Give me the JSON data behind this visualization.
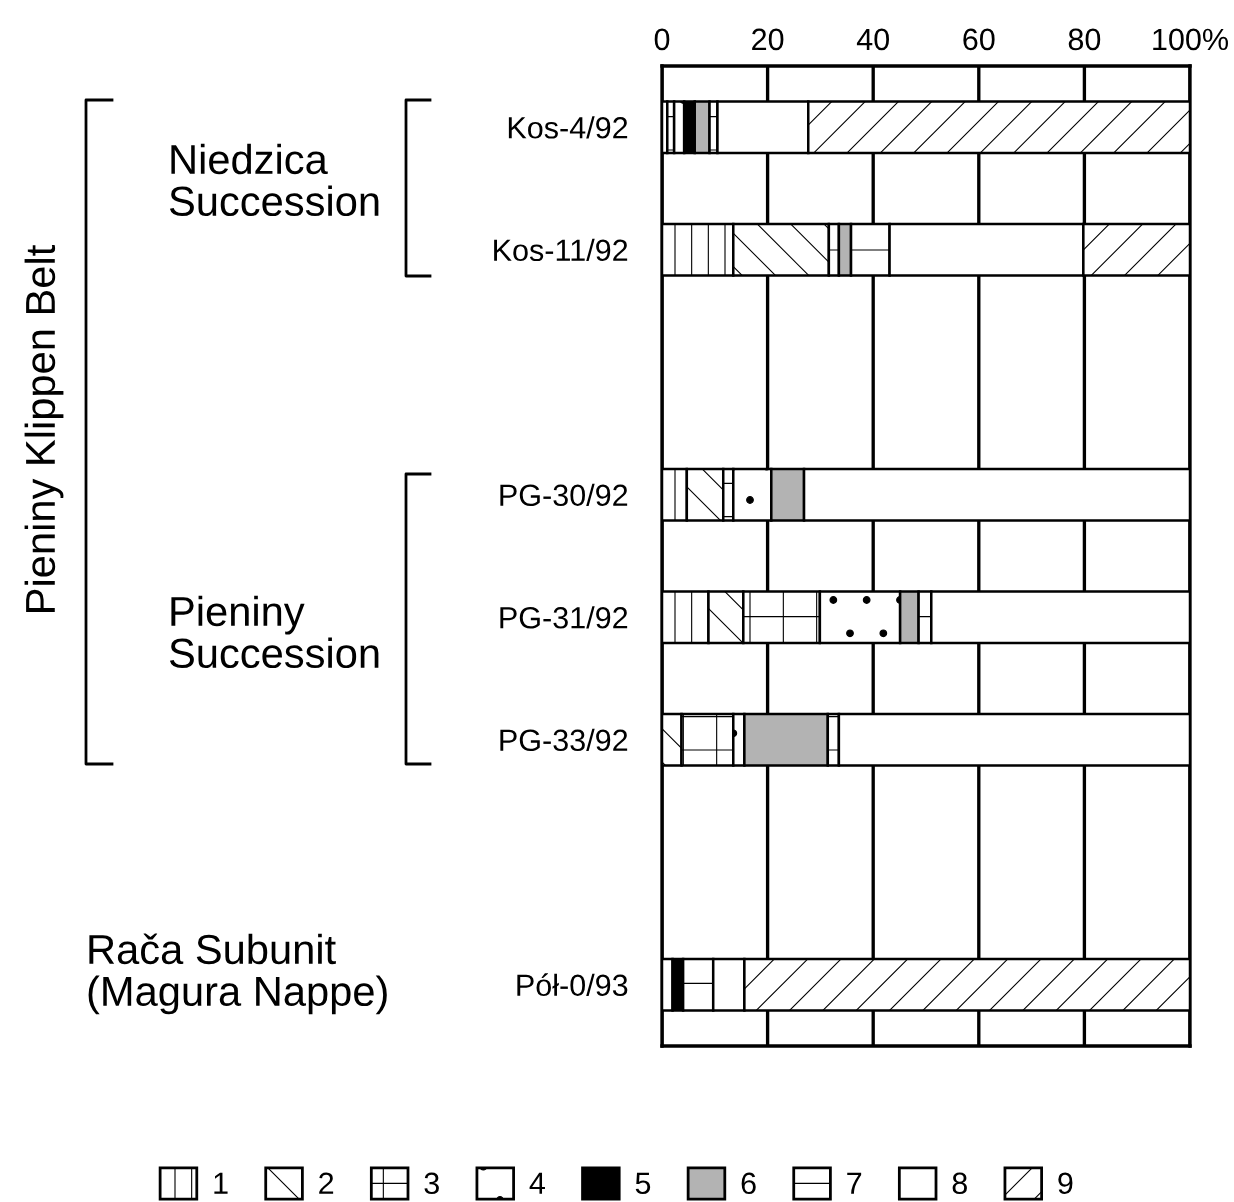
{
  "chart_data": {
    "type": "bar",
    "orientation": "horizontal",
    "stacked": true,
    "categories": [
      "Kos-4/92",
      "Kos-11/92",
      null,
      "PG-30/92",
      "PG-31/92",
      "PG-33/92",
      null,
      "Pół-0/93"
    ],
    "series": [
      {
        "name": "1",
        "color": "#ffffff",
        "values": [
          1.0,
          13.5,
          null,
          4.7,
          8.8,
          0,
          null,
          2.0
        ]
      },
      {
        "name": "2",
        "color": "#ffffff",
        "values": [
          0,
          18.1,
          null,
          6.9,
          6.6,
          3.7,
          null,
          0
        ]
      },
      {
        "name": "3",
        "color": "#ffffff",
        "values": [
          1.3,
          1.9,
          null,
          1.9,
          14.5,
          9.8,
          null,
          0
        ]
      },
      {
        "name": "4",
        "color": "#ffffff",
        "values": [
          1.9,
          0,
          null,
          7.2,
          15.2,
          2.1,
          null,
          0
        ]
      },
      {
        "name": "5",
        "color": "#000000",
        "values": [
          2.0,
          0,
          null,
          0,
          0,
          0,
          null,
          2.0
        ]
      },
      {
        "name": "6",
        "color": "#b3b3b3",
        "values": [
          2.8,
          2.3,
          null,
          6.2,
          3.5,
          15.8,
          null,
          0
        ]
      },
      {
        "name": "7",
        "color": "#ffffff",
        "values": [
          1.5,
          7.3,
          null,
          0,
          2.4,
          2.1,
          null,
          5.7
        ]
      },
      {
        "name": "8",
        "color": "#ffffff",
        "values": [
          17.2,
          36.7,
          null,
          73.1,
          49.0,
          66.5,
          null,
          5.9
        ]
      },
      {
        "name": "9",
        "color": "#ffffff",
        "values": [
          72.3,
          20.2,
          null,
          0,
          0,
          0,
          null,
          84.4
        ]
      }
    ],
    "xlim": [
      0,
      100
    ],
    "xticks": [
      0,
      20,
      40,
      60,
      80,
      {
        "value": 100,
        "label": "100%"
      }
    ],
    "grid": "x",
    "legend": "bottom",
    "annotations": [
      "Niedzica\nSuccession",
      "Pieniny\nSuccession",
      "Pieniny Klippen Belt",
      "Rača Subunit\n(Magura Nappe)"
    ]
  }
}
